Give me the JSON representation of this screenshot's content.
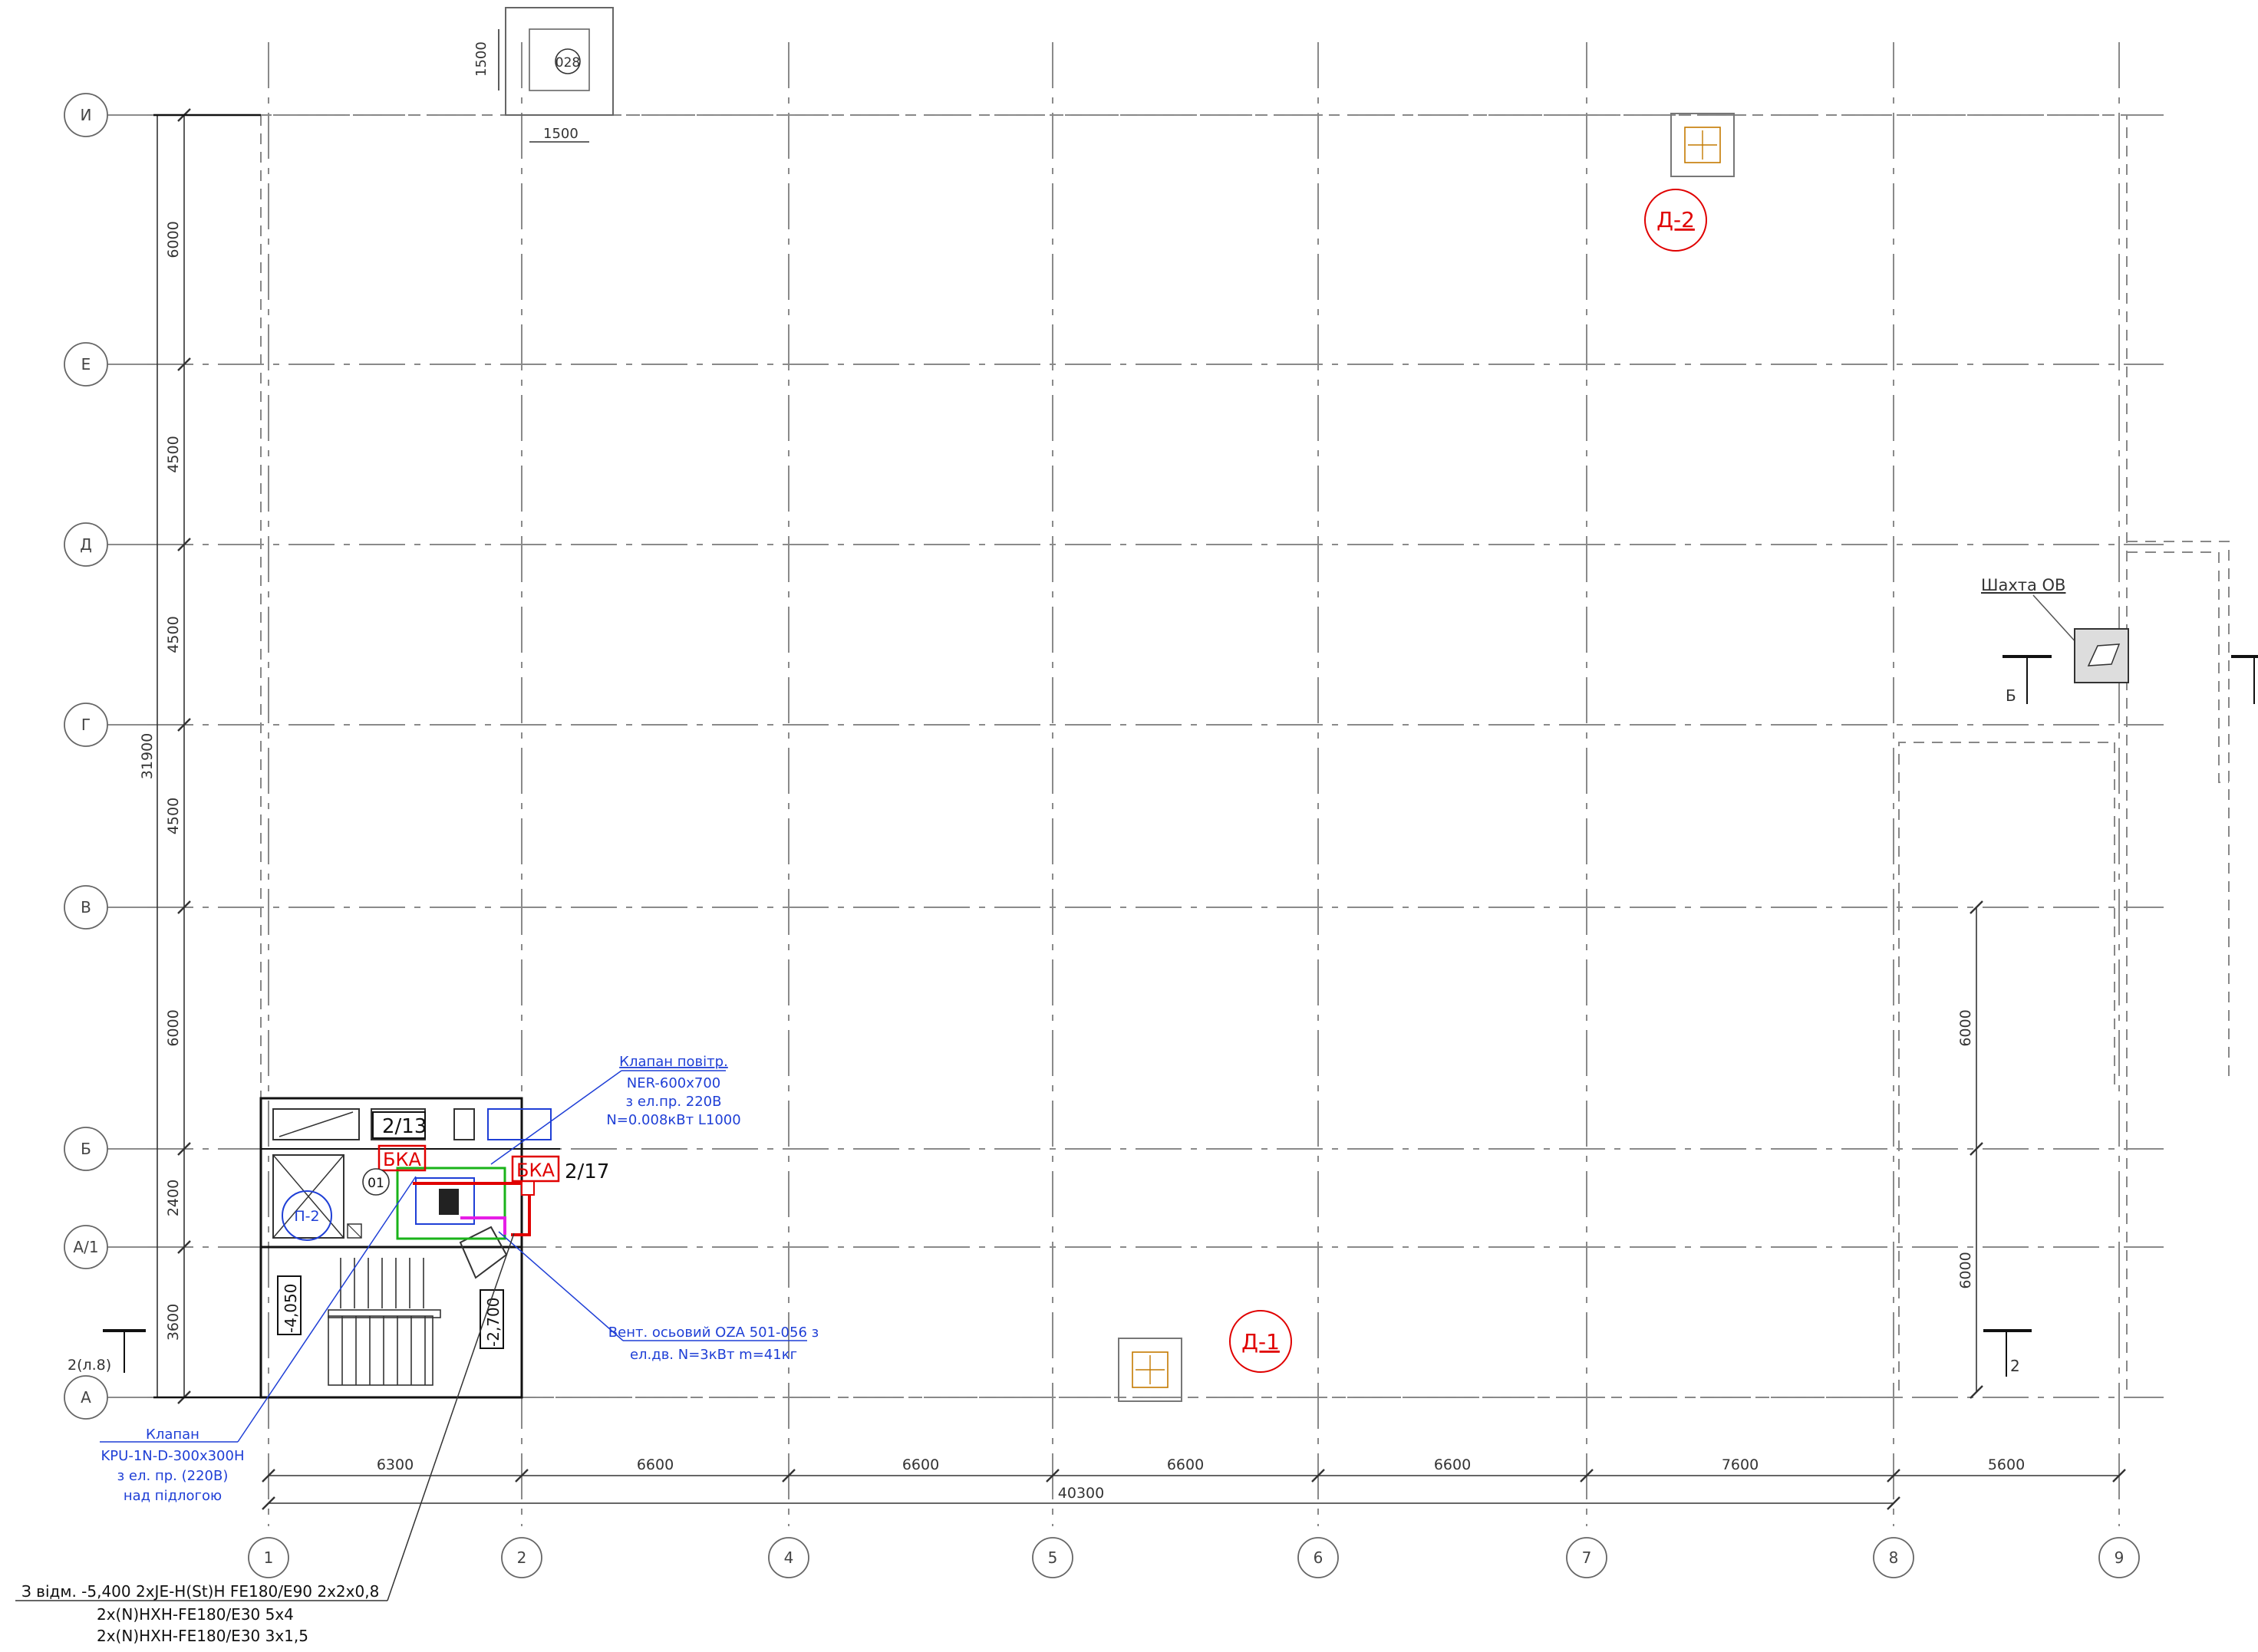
{
  "plan": {
    "axes_rows": [
      {
        "label": "И",
        "dim_below": "6000"
      },
      {
        "label": "Е",
        "dim_below": "4500"
      },
      {
        "label": "Д",
        "dim_below": "4500"
      },
      {
        "label": "Г",
        "dim_below": "4500"
      },
      {
        "label": "В",
        "dim_below": "6000"
      },
      {
        "label": "Б",
        "dim_below": "2400"
      },
      {
        "label": "А/1",
        "dim_below": "3600"
      },
      {
        "label": "А",
        "dim_below": ""
      }
    ],
    "axes_cols": [
      {
        "label": "1",
        "dim_right": "6300"
      },
      {
        "label": "2",
        "dim_right": "6600"
      },
      {
        "label": "4",
        "dim_right": "6600"
      },
      {
        "label": "5",
        "dim_right": "6600"
      },
      {
        "label": "6",
        "dim_right": "6600"
      },
      {
        "label": "7",
        "dim_right": "7600"
      },
      {
        "label": "8",
        "dim_right": "5600"
      },
      {
        "label": "9",
        "dim_right": ""
      }
    ],
    "total_height": "31900",
    "total_width": "40300",
    "right_dims": [
      "6000",
      "6000"
    ],
    "top_shaft": {
      "size_v": "1500",
      "size_h": "1500",
      "tag": "028"
    },
    "smoke_exhausts": [
      "Д-2",
      "Д-1"
    ],
    "shaft_label": "Шахта ОВ",
    "sections": [
      "Б",
      "2",
      "2(л.8)"
    ],
    "room": {
      "tag_main": "2/13",
      "tag_right": "2/17",
      "bka": "БКА",
      "marker_01": "01",
      "marker_p2": "П-2",
      "level_1": "-4,050",
      "level_2": "-2,700"
    },
    "notes": {
      "valve_air": [
        "Клапан повітр.",
        "NER-600x700",
        "з ел.пр. 220В",
        "N=0.008кВт L1000"
      ],
      "fan": [
        "Вент. осьовий OZA 501-056 з",
        "ел.дв. N=3кВт m=41кг"
      ],
      "valve_floor": [
        "Клапан",
        "KPU-1N-D-300x300H",
        "з ел. пр. (220В)",
        "над підлогою"
      ],
      "cable": [
        "З відм. -5,400 2xJE-H(St)H FE180/E90 2x2x0,8",
        "2x(N)HXH-FE180/E30 5x4",
        "2x(N)HXH-FE180/E30 3x1,5"
      ]
    },
    "colors": {
      "annotation_blue": "#1f3fd6",
      "annotation_red": "#e00000",
      "duct_green": "#19b319",
      "duct_magenta": "#e61ee6"
    }
  }
}
